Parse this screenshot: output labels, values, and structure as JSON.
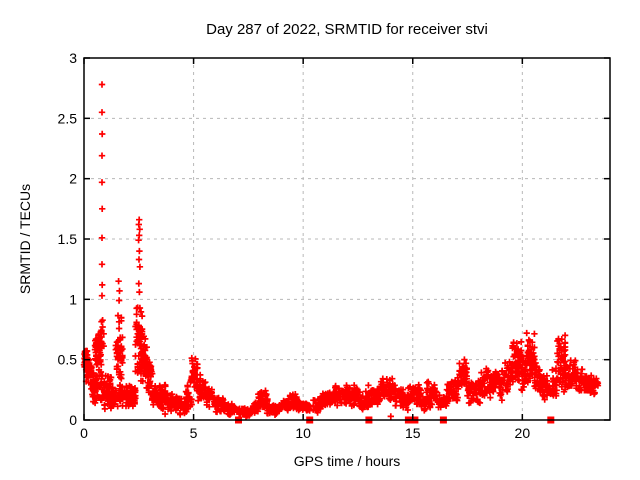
{
  "chart_data": {
    "type": "scatter",
    "title": "Day 287 of 2022, SRMTID for receiver stvi",
    "xlabel": "GPS time / hours",
    "ylabel": "SRMTID / TECUs",
    "xlim": [
      0,
      24
    ],
    "ylim": [
      0,
      3
    ],
    "xticks": [
      0,
      5,
      10,
      15,
      20
    ],
    "yticks": [
      0,
      0.5,
      1,
      1.5,
      2,
      2.5,
      3
    ],
    "grid": true,
    "grid_color": "#b8b8b8",
    "border_color": "#000000",
    "marker_color": "#ff0000",
    "series": [
      {
        "name": "srmtid-plus-markers",
        "marker": "plus",
        "color": "#ff0000",
        "bands": [
          [
            0.0,
            0.18,
            0.4,
            0.62,
            40
          ],
          [
            0.05,
            0.35,
            0.3,
            0.55,
            45
          ],
          [
            0.3,
            0.55,
            0.12,
            0.45,
            35
          ],
          [
            0.5,
            0.8,
            0.4,
            0.75,
            55
          ],
          [
            0.55,
            0.85,
            0.1,
            0.42,
            25
          ],
          [
            0.78,
            0.92,
            0.5,
            0.92,
            15
          ],
          [
            0.9,
            1.25,
            0.08,
            0.38,
            45
          ],
          [
            1.25,
            1.48,
            0.08,
            0.28,
            30
          ],
          [
            1.45,
            1.75,
            0.25,
            0.92,
            55
          ],
          [
            1.5,
            1.8,
            0.08,
            0.3,
            20
          ],
          [
            1.8,
            2.35,
            0.08,
            0.3,
            65
          ],
          [
            2.35,
            2.65,
            0.25,
            1.0,
            60
          ],
          [
            2.62,
            2.88,
            0.28,
            0.7,
            40
          ],
          [
            2.85,
            3.12,
            0.18,
            0.55,
            35
          ],
          [
            3.1,
            3.48,
            0.1,
            0.32,
            40
          ],
          [
            3.45,
            3.8,
            0.08,
            0.33,
            35
          ],
          [
            3.8,
            4.35,
            0.06,
            0.22,
            45
          ],
          [
            4.35,
            4.68,
            0.04,
            0.18,
            30
          ],
          [
            4.65,
            4.92,
            0.08,
            0.35,
            25
          ],
          [
            4.9,
            5.18,
            0.22,
            0.55,
            30
          ],
          [
            5.15,
            5.55,
            0.14,
            0.4,
            35
          ],
          [
            5.5,
            5.95,
            0.1,
            0.3,
            35
          ],
          [
            5.9,
            6.45,
            0.06,
            0.2,
            40
          ],
          [
            6.4,
            6.92,
            0.03,
            0.15,
            35
          ],
          [
            7.0,
            7.62,
            0.02,
            0.12,
            45
          ],
          [
            7.6,
            7.98,
            0.04,
            0.15,
            28
          ],
          [
            7.95,
            8.38,
            0.07,
            0.27,
            42
          ],
          [
            8.35,
            8.92,
            0.04,
            0.14,
            40
          ],
          [
            8.9,
            9.35,
            0.06,
            0.18,
            35
          ],
          [
            9.32,
            9.8,
            0.08,
            0.23,
            38
          ],
          [
            9.78,
            10.32,
            0.05,
            0.17,
            38
          ],
          [
            10.45,
            10.92,
            0.05,
            0.2,
            35
          ],
          [
            10.9,
            11.48,
            0.09,
            0.28,
            48
          ],
          [
            11.45,
            12.02,
            0.1,
            0.3,
            48
          ],
          [
            12.0,
            12.48,
            0.1,
            0.3,
            42
          ],
          [
            12.45,
            12.98,
            0.07,
            0.25,
            42
          ],
          [
            12.95,
            13.52,
            0.1,
            0.3,
            45
          ],
          [
            13.5,
            14.22,
            0.14,
            0.38,
            58
          ],
          [
            14.2,
            14.58,
            0.1,
            0.28,
            30
          ],
          [
            14.55,
            14.78,
            0.07,
            0.2,
            16
          ],
          [
            14.75,
            15.02,
            0.1,
            0.3,
            20
          ],
          [
            15.0,
            15.38,
            0.12,
            0.33,
            30
          ],
          [
            15.35,
            15.62,
            0.07,
            0.2,
            18
          ],
          [
            15.6,
            16.12,
            0.1,
            0.35,
            42
          ],
          [
            16.1,
            16.58,
            0.07,
            0.22,
            26
          ],
          [
            16.55,
            17.12,
            0.14,
            0.38,
            45
          ],
          [
            17.1,
            17.48,
            0.22,
            0.56,
            35
          ],
          [
            17.45,
            18.12,
            0.12,
            0.35,
            50
          ],
          [
            18.1,
            18.68,
            0.15,
            0.46,
            46
          ],
          [
            18.65,
            19.18,
            0.15,
            0.47,
            46
          ],
          [
            19.15,
            19.58,
            0.2,
            0.52,
            36
          ],
          [
            19.55,
            19.98,
            0.22,
            0.73,
            55
          ],
          [
            19.95,
            20.22,
            0.2,
            0.55,
            25
          ],
          [
            20.2,
            20.58,
            0.25,
            0.78,
            52
          ],
          [
            20.55,
            20.92,
            0.18,
            0.5,
            35
          ],
          [
            20.9,
            21.38,
            0.14,
            0.4,
            35
          ],
          [
            21.35,
            21.62,
            0.15,
            0.45,
            25
          ],
          [
            21.6,
            21.95,
            0.12,
            0.8,
            55
          ],
          [
            21.95,
            22.42,
            0.2,
            0.52,
            42
          ],
          [
            22.4,
            22.92,
            0.22,
            0.46,
            46
          ],
          [
            22.9,
            23.32,
            0.18,
            0.4,
            40
          ],
          [
            23.25,
            23.5,
            0.24,
            0.36,
            12
          ]
        ],
        "points": [
          [
            0.82,
            2.78
          ],
          [
            0.82,
            2.55
          ],
          [
            0.83,
            2.37
          ],
          [
            0.82,
            2.19
          ],
          [
            0.82,
            1.97
          ],
          [
            0.83,
            1.75
          ],
          [
            0.82,
            1.51
          ],
          [
            0.82,
            1.29
          ],
          [
            0.83,
            1.12
          ],
          [
            0.82,
            1.03
          ],
          [
            1.58,
            1.15
          ],
          [
            1.62,
            1.07
          ],
          [
            1.6,
            0.99
          ],
          [
            2.52,
            1.66
          ],
          [
            2.5,
            1.62
          ],
          [
            2.54,
            1.58
          ],
          [
            2.52,
            1.53
          ],
          [
            2.49,
            1.49
          ],
          [
            2.53,
            1.4
          ],
          [
            2.51,
            1.33
          ],
          [
            2.55,
            1.27
          ],
          [
            2.5,
            1.13
          ],
          [
            2.53,
            1.06
          ],
          [
            3.7,
            0.05
          ],
          [
            14.0,
            0.03
          ]
        ]
      },
      {
        "name": "baseline-square-flags",
        "marker": "square",
        "color": "#ff0000",
        "points": [
          [
            7.05,
            0
          ],
          [
            10.3,
            0
          ],
          [
            13.0,
            0
          ],
          [
            14.8,
            0
          ],
          [
            15.1,
            0
          ],
          [
            16.4,
            0
          ],
          [
            21.3,
            0
          ]
        ]
      }
    ]
  }
}
